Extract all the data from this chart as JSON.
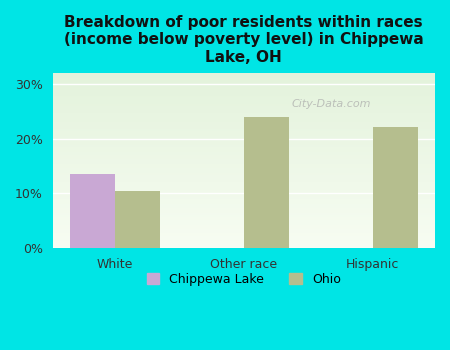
{
  "title": "Breakdown of poor residents within races\n(income below poverty level) in Chippewa\nLake, OH",
  "categories": [
    "White",
    "Other race",
    "Hispanic"
  ],
  "chippewa_values": [
    13.5,
    0.0,
    0.0
  ],
  "ohio_values": [
    10.5,
    24.0,
    22.2
  ],
  "chippewa_color": "#c9a8d4",
  "ohio_color": "#b5be8e",
  "background_color": "#00e5e5",
  "yticks": [
    0,
    10,
    20,
    30
  ],
  "ylim": [
    0,
    32
  ],
  "bar_width": 0.35,
  "legend_label_1": "Chippewa Lake",
  "legend_label_2": "Ohio",
  "watermark": "City-Data.com"
}
